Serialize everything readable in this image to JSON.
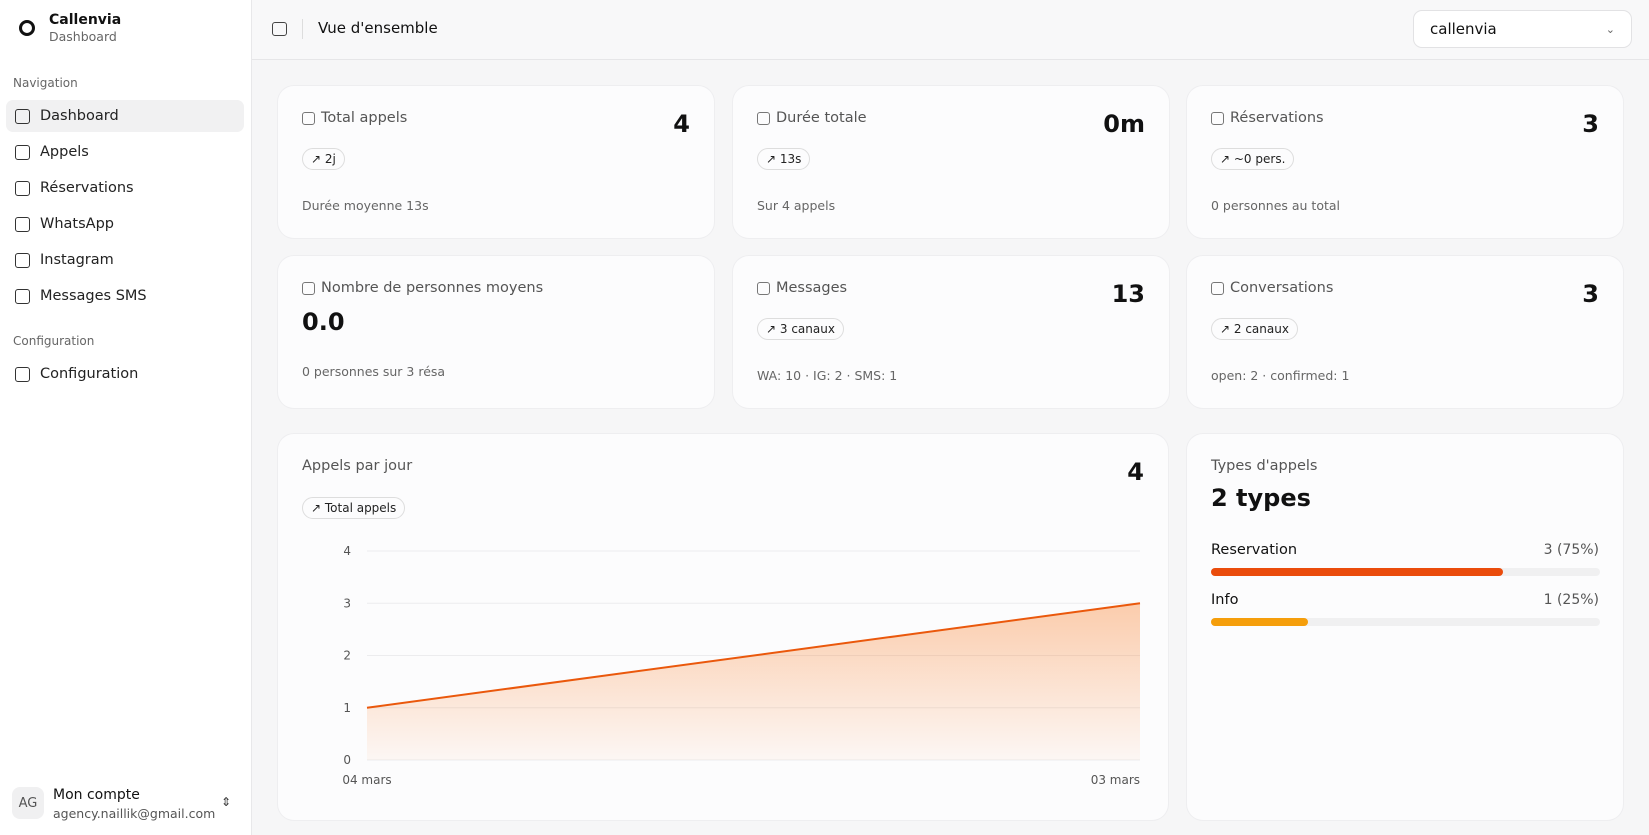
{
  "sidebar": {
    "brand": "Callenvia",
    "subtitle": "Dashboard",
    "sections": [
      {
        "title": "Navigation",
        "items": [
          "Dashboard",
          "Appels",
          "Réservations",
          "WhatsApp",
          "Instagram",
          "Messages SMS"
        ]
      },
      {
        "title": "Configuration",
        "items": [
          "Configuration"
        ]
      }
    ],
    "account": {
      "initials": "AG",
      "name": "Mon compte",
      "email": "agency.naillik@gmail.com"
    }
  },
  "header": {
    "title": "Vue d'ensemble",
    "select": "callenvia"
  },
  "cards": [
    {
      "title": "Total appels",
      "value": "4",
      "badge": "2j",
      "note": "Durée moyenne 13s"
    },
    {
      "title": "Durée totale",
      "value": "0m",
      "badge": "13s",
      "note": "Sur 4 appels"
    },
    {
      "title": "Réservations",
      "value": "3",
      "badge": "~0 pers.",
      "note": "0 personnes au total"
    },
    {
      "title": "Nombre de personnes moyens",
      "value": "0.0",
      "note": "0 personnes sur 3 résa"
    },
    {
      "title": "Messages",
      "value": "13",
      "badge": "3 canaux",
      "note": "WA: 10 · IG: 2 · SMS: 1"
    },
    {
      "title": "Conversations",
      "value": "3",
      "badge": "2 canaux",
      "note": "open: 2 · confirmed: 1"
    }
  ],
  "chart_data": {
    "type": "line",
    "title": "Appels par jour",
    "total": "4",
    "badge": "Total appels",
    "categories": [
      "04 mars",
      "03 mars"
    ],
    "values": [
      1,
      3
    ],
    "color": "#ea580c",
    "ylim": [
      0,
      4
    ],
    "yticks": [
      0,
      1,
      2,
      3,
      4
    ],
    "grid": true
  },
  "call_types": {
    "title": "Types d'appels",
    "summary": "2 types",
    "items": [
      {
        "name": "Reservation",
        "value": 75,
        "label": "3 (75%)",
        "color": "#ea4c0c"
      },
      {
        "name": "Info",
        "value": 25,
        "label": "1 (25%)",
        "color": "#f59e0b"
      }
    ]
  }
}
